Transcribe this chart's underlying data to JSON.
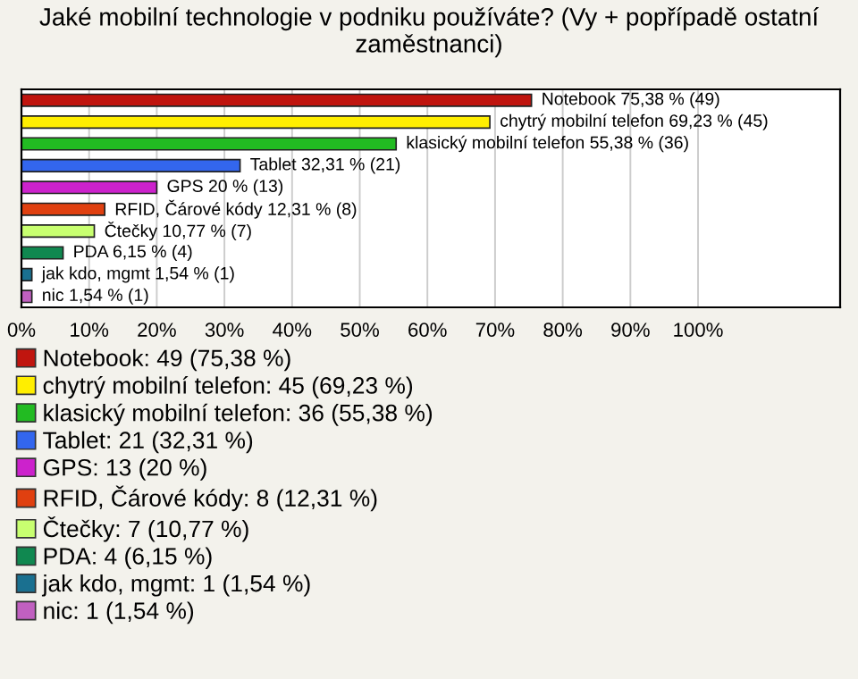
{
  "chart_data": {
    "type": "bar",
    "orientation": "horizontal",
    "title": "Jaké mobilní technologie v podniku používáte? (Vy + popřípadě ostatní zaměstnanci)",
    "categories": [
      null,
      null,
      null,
      null,
      null,
      null,
      null,
      null,
      null,
      null
    ],
    "series": [
      {
        "name": "Notebook: 49 (75,38 %)",
        "color": "#c0150f",
        "values": [
          75.38,
          null,
          null,
          null,
          null,
          null,
          null,
          null,
          null,
          null
        ],
        "value_labels": [
          "Notebook 75,38 % (49)",
          null,
          null,
          null,
          null,
          null,
          null,
          null,
          null,
          null
        ]
      },
      {
        "name": "chytrý mobilní telefon: 45 (69,23 %)",
        "color": "#ffee00",
        "values": [
          null,
          69.23,
          null,
          null,
          null,
          null,
          null,
          null,
          null,
          null
        ],
        "value_labels": [
          null,
          "chytrý mobilní telefon 69,23 % (45)",
          null,
          null,
          null,
          null,
          null,
          null,
          null,
          null
        ]
      },
      {
        "name": "klasický mobilní telefon: 36 (55,38 %)",
        "color": "#22bb22",
        "values": [
          null,
          null,
          55.38,
          null,
          null,
          null,
          null,
          null,
          null,
          null
        ],
        "value_labels": [
          null,
          null,
          "klasický mobilní telefon 55,38 % (36)",
          null,
          null,
          null,
          null,
          null,
          null,
          null
        ]
      },
      {
        "name": "Tablet: 21 (32,31 %)",
        "color": "#3366ee",
        "values": [
          null,
          null,
          null,
          32.31,
          null,
          null,
          null,
          null,
          null,
          null
        ],
        "value_labels": [
          null,
          null,
          null,
          "Tablet 32,31 % (21)",
          null,
          null,
          null,
          null,
          null,
          null
        ]
      },
      {
        "name": "GPS: 13 (20 %)",
        "color": "#cc22cc",
        "values": [
          null,
          null,
          null,
          null,
          20,
          null,
          null,
          null,
          null,
          null
        ],
        "value_labels": [
          null,
          null,
          null,
          null,
          "GPS 20 % (13)",
          null,
          null,
          null,
          null,
          null
        ]
      },
      {
        "name": "RFID, Čárové kódy: 8 (12,31 %)",
        "color": "#e04010",
        "values": [
          null,
          null,
          null,
          null,
          null,
          12.31,
          null,
          null,
          null,
          null
        ],
        "value_labels": [
          null,
          null,
          null,
          null,
          null,
          "RFID, Čárové kódy 12,31 % (8)",
          null,
          null,
          null,
          null
        ]
      },
      {
        "name": "Čtečky: 7 (10,77 %)",
        "color": "#c8ff70",
        "values": [
          null,
          null,
          null,
          null,
          null,
          null,
          10.77,
          null,
          null,
          null
        ],
        "value_labels": [
          null,
          null,
          null,
          null,
          null,
          null,
          "Čtečky 10,77 % (7)",
          null,
          null,
          null
        ]
      },
      {
        "name": "PDA: 4 (6,15 %)",
        "color": "#108850",
        "values": [
          null,
          null,
          null,
          null,
          null,
          null,
          null,
          6.15,
          null,
          null
        ],
        "value_labels": [
          null,
          null,
          null,
          null,
          null,
          null,
          null,
          "PDA 6,15 % (4)",
          null,
          null
        ]
      },
      {
        "name": "jak kdo, mgmt: 1 (1,54 %)",
        "color": "#1a7090",
        "values": [
          null,
          null,
          null,
          null,
          null,
          null,
          null,
          null,
          1.54,
          null
        ],
        "value_labels": [
          null,
          null,
          null,
          null,
          null,
          null,
          null,
          null,
          "jak kdo, mgmt 1,54 % (1)",
          null
        ]
      },
      {
        "name": "nic: 1 (1,54 %)",
        "color": "#c060c0",
        "values": [
          null,
          null,
          null,
          null,
          null,
          null,
          null,
          null,
          null,
          1.54
        ],
        "value_labels": [
          null,
          null,
          null,
          null,
          null,
          null,
          null,
          null,
          null,
          "nic 1,54 % (1)"
        ]
      }
    ],
    "xlim": [
      0,
      121
    ],
    "xticks": [
      {
        "value": 0,
        "label": "0%"
      },
      {
        "value": 10,
        "label": "10%"
      },
      {
        "value": 20,
        "label": "20%"
      },
      {
        "value": 30,
        "label": "30%"
      },
      {
        "value": 40,
        "label": "40%"
      },
      {
        "value": 50,
        "label": "50%"
      },
      {
        "value": 60,
        "label": "60%"
      },
      {
        "value": 70,
        "label": "70%"
      },
      {
        "value": 80,
        "label": "80%"
      },
      {
        "value": 90,
        "label": "90%"
      },
      {
        "value": 100,
        "label": "100%"
      }
    ],
    "grid": "x",
    "legend": "bottom"
  }
}
